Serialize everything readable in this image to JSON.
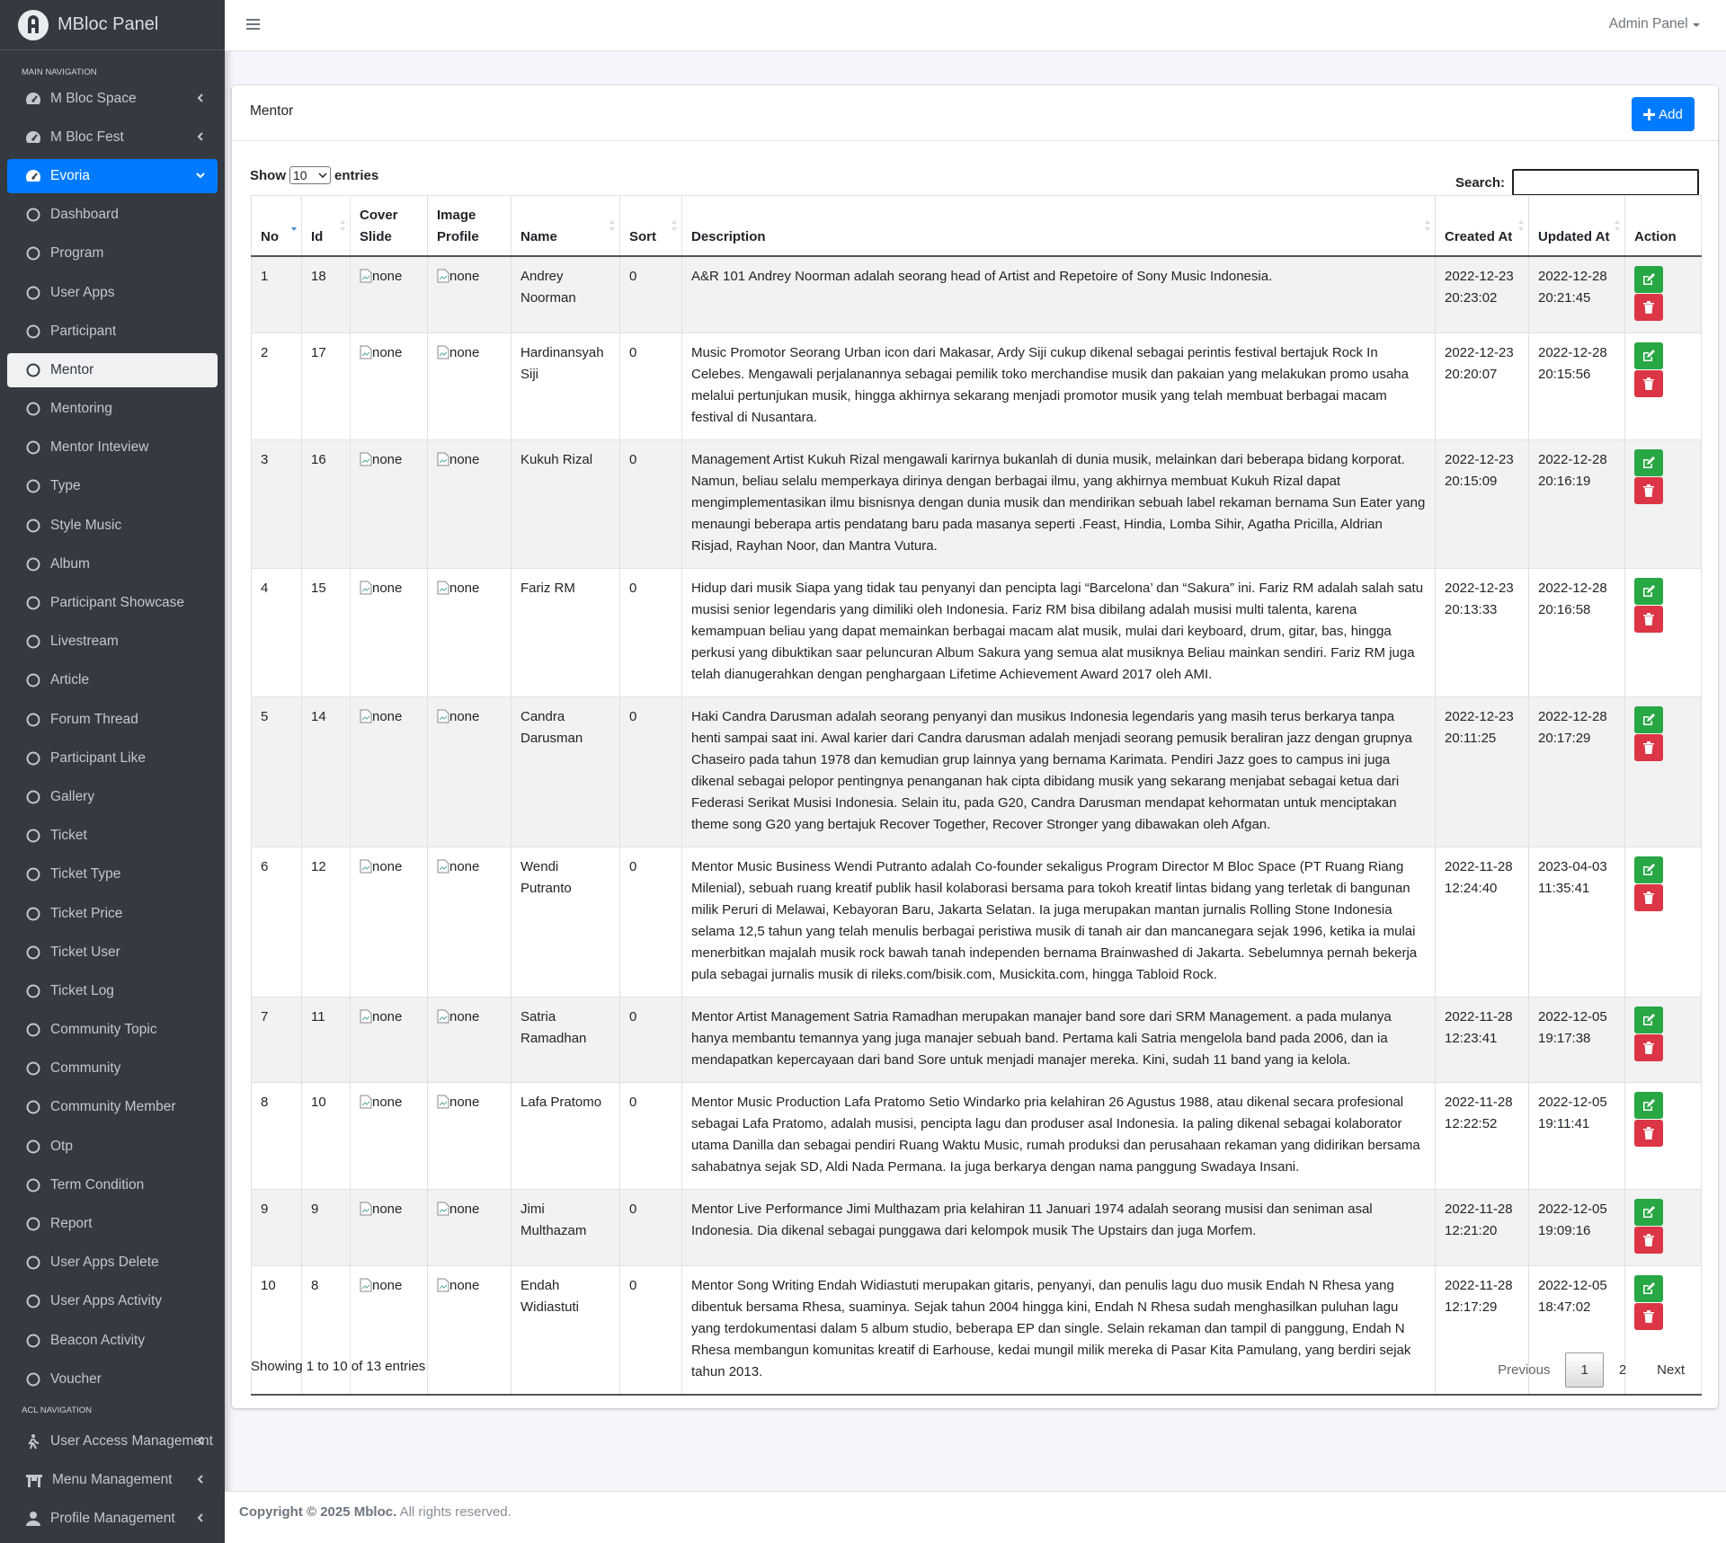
{
  "brand": "MBloc Panel",
  "header": {
    "user_menu": "Admin Panel"
  },
  "sidebar": {
    "sections": [
      {
        "heading": "MAIN NAVIGATION",
        "items": [
          {
            "label": "M Bloc Space"
          },
          {
            "label": "M Bloc Fest"
          },
          {
            "label": "Evoria",
            "expanded": true,
            "children": [
              {
                "label": "Dashboard"
              },
              {
                "label": "Program"
              },
              {
                "label": "User Apps"
              },
              {
                "label": "Participant"
              },
              {
                "label": "Mentor",
                "active": true
              },
              {
                "label": "Mentoring"
              },
              {
                "label": "Mentor Inteview"
              },
              {
                "label": "Type"
              },
              {
                "label": "Style Music"
              },
              {
                "label": "Album"
              },
              {
                "label": "Participant Showcase"
              },
              {
                "label": "Livestream"
              },
              {
                "label": "Article"
              },
              {
                "label": "Forum Thread"
              },
              {
                "label": "Participant Like"
              },
              {
                "label": "Gallery"
              },
              {
                "label": "Ticket"
              },
              {
                "label": "Ticket Type"
              },
              {
                "label": "Ticket Price"
              },
              {
                "label": "Ticket User"
              },
              {
                "label": "Ticket Log"
              },
              {
                "label": "Community Topic"
              },
              {
                "label": "Community"
              },
              {
                "label": "Community Member"
              },
              {
                "label": "Otp"
              },
              {
                "label": "Term Condition"
              },
              {
                "label": "Report"
              },
              {
                "label": "User Apps Delete"
              },
              {
                "label": "User Apps Activity"
              },
              {
                "label": "Beacon Activity"
              },
              {
                "label": "Voucher"
              }
            ]
          }
        ]
      },
      {
        "heading": "ACL NAVIGATION",
        "items": [
          {
            "label": "User Access Management"
          },
          {
            "label": "Menu Management"
          },
          {
            "label": "Profile Management"
          }
        ]
      }
    ]
  },
  "card": {
    "title": "Mentor",
    "add_button": "Add"
  },
  "controls": {
    "show": "Show",
    "length": "10",
    "entries": "entries",
    "search": "Search:"
  },
  "table": {
    "columns": [
      "No",
      "Id",
      "Cover Slide",
      "Image Profile",
      "Name",
      "Sort",
      "Description",
      "Created At",
      "Updated At",
      "Action"
    ],
    "rows": [
      {
        "no": 1,
        "id": 18,
        "cover": "none",
        "image": "none",
        "name": "Andrey Noorman",
        "sort": 0,
        "description": "A&R 101 Andrey Noorman adalah seorang head of Artist and Repetoire of Sony Music Indonesia.",
        "created": "2022-12-23 20:23:02",
        "updated": "2022-12-28 20:21:45"
      },
      {
        "no": 2,
        "id": 17,
        "cover": "none",
        "image": "none",
        "name": "Hardinansyah Siji",
        "sort": 0,
        "description": "Music Promotor Seorang Urban icon dari Makasar, Ardy Siji cukup dikenal sebagai perintis festival bertajuk Rock In Celebes. Mengawali perjalanannya sebagai pemilik toko merchandise musik dan pakaian yang melakukan promo usaha melalui pertunjukan musik, hingga akhirnya sekarang menjadi promotor musik yang telah membuat berbagai macam festival di Nusantara.",
        "created": "2022-12-23 20:20:07",
        "updated": "2022-12-28 20:15:56"
      },
      {
        "no": 3,
        "id": 16,
        "cover": "none",
        "image": "none",
        "name": "Kukuh Rizal",
        "sort": 0,
        "description": "Management Artist Kukuh Rizal mengawali karirnya bukanlah di dunia musik, melainkan dari beberapa bidang korporat. Namun, beliau selalu memperkaya dirinya dengan berbagai ilmu, yang akhirnya membuat Kukuh Rizal dapat mengimplementasikan ilmu bisnisnya dengan dunia musik dan mendirikan sebuah label rekaman bernama Sun Eater yang menaungi beberapa artis pendatang baru pada masanya seperti .Feast, Hindia, Lomba Sihir, Agatha Pricilla, Aldrian Risjad, Rayhan Noor, dan Mantra Vutura.",
        "created": "2022-12-23 20:15:09",
        "updated": "2022-12-28 20:16:19"
      },
      {
        "no": 4,
        "id": 15,
        "cover": "none",
        "image": "none",
        "name": "Fariz RM",
        "sort": 0,
        "description": "Hidup dari musik Siapa yang tidak tau penyanyi dan pencipta lagi “Barcelona’ dan “Sakura” ini. Fariz RM adalah salah satu musisi senior legendaris yang dimiliki oleh Indonesia. Fariz RM bisa dibilang adalah musisi multi talenta, karena kemampuan beliau yang dapat memainkan berbagai macam alat musik, mulai dari keyboard, drum, gitar, bas, hingga perkusi yang dibuktikan saar peluncuran Album Sakura yang semua alat musiknya Beliau mainkan sendiri. Fariz RM juga telah dianugerahkan dengan penghargaan Lifetime Achievement Award 2017 oleh AMI.",
        "created": "2022-12-23 20:13:33",
        "updated": "2022-12-28 20:16:58"
      },
      {
        "no": 5,
        "id": 14,
        "cover": "none",
        "image": "none",
        "name": "Candra Darusman",
        "sort": 0,
        "description": "Haki Candra Darusman adalah seorang penyanyi dan musikus Indonesia legendaris yang masih terus berkarya tanpa henti sampai saat ini. Awal karier dari Candra darusman adalah menjadi seorang pemusik beraliran jazz dengan grupnya Chaseiro pada tahun 1978 dan kemudian grup lainnya yang bernama Karimata. Pendiri Jazz goes to campus ini juga dikenal sebagai pelopor pentingnya penanganan hak cipta dibidang musik yang sekarang menjabat sebagai ketua dari Federasi Serikat Musisi Indonesia. Selain itu, pada G20, Candra Darusman mendapat kehormatan untuk menciptakan theme song G20 yang bertajuk Recover Together, Recover Stronger yang dibawakan oleh Afgan.",
        "created": "2022-12-23 20:11:25",
        "updated": "2022-12-28 20:17:29"
      },
      {
        "no": 6,
        "id": 12,
        "cover": "none",
        "image": "none",
        "name": "Wendi Putranto",
        "sort": 0,
        "description": "Mentor Music Business Wendi Putranto adalah Co-founder sekaligus Program Director M Bloc Space (PT Ruang Riang Milenial), sebuah ruang kreatif publik hasil kolaborasi bersama para tokoh kreatif lintas bidang yang terletak di bangunan milik Peruri di Melawai, Kebayoran Baru, Jakarta Selatan. Ia juga merupakan mantan jurnalis Rolling Stone Indonesia selama 12,5 tahun yang telah menulis berbagai peristiwa musik di tanah air dan mancanegara sejak 1996, ketika ia mulai menerbitkan majalah musik rock bawah tanah independen bernama Brainwashed di Jakarta. Sebelumnya pernah bekerja pula sebagai jurnalis musik di rileks.com/bisik.com, Musickita.com, hingga Tabloid Rock.",
        "created": "2022-11-28 12:24:40",
        "updated": "2023-04-03 11:35:41"
      },
      {
        "no": 7,
        "id": 11,
        "cover": "none",
        "image": "none",
        "name": "Satria Ramadhan",
        "sort": 0,
        "description": "Mentor Artist Management Satria Ramadhan merupakan manajer band sore dari SRM Management. a pada mulanya hanya membantu temannya yang juga manajer sebuah band. Pertama kali Satria mengelola band pada 2006, dan ia mendapatkan kepercayaan dari band Sore untuk menjadi manajer mereka. Kini, sudah 11 band yang ia kelola.",
        "created": "2022-11-28 12:23:41",
        "updated": "2022-12-05 19:17:38"
      },
      {
        "no": 8,
        "id": 10,
        "cover": "none",
        "image": "none",
        "name": "Lafa Pratomo",
        "sort": 0,
        "description": "Mentor Music Production Lafa Pratomo Setio Windarko pria kelahiran 26 Agustus 1988, atau dikenal secara profesional sebagai Lafa Pratomo, adalah musisi, pencipta lagu dan produser asal Indonesia. Ia paling dikenal sebagai kolaborator utama Danilla dan sebagai pendiri Ruang Waktu Music, rumah produksi dan perusahaan rekaman yang didirikan bersama sahabatnya sejak SD, Aldi Nada Permana. Ia juga berkarya dengan nama panggung Swadaya Insani.",
        "created": "2022-11-28 12:22:52",
        "updated": "2022-12-05 19:11:41"
      },
      {
        "no": 9,
        "id": 9,
        "cover": "none",
        "image": "none",
        "name": "Jimi Multhazam",
        "sort": 0,
        "description": "Mentor Live Performance Jimi Multhazam pria kelahiran 11 Januari 1974 adalah seorang musisi dan seniman asal Indonesia. Dia dikenal sebagai punggawa dari kelompok musik The Upstairs dan juga Morfem.",
        "created": "2022-11-28 12:21:20",
        "updated": "2022-12-05 19:09:16"
      },
      {
        "no": 10,
        "id": 8,
        "cover": "none",
        "image": "none",
        "name": "Endah Widiastuti",
        "sort": 0,
        "description": "Mentor Song Writing Endah Widiastuti merupakan gitaris, penyanyi, dan penulis lagu duo musik Endah N Rhesa yang dibentuk bersama Rhesa, suaminya. Sejak tahun 2004 hingga kini, Endah N Rhesa sudah menghasilkan puluhan lagu yang terdokumentasi dalam 5 album studio, beberapa EP dan single. Selain rekaman dan tampil di panggung, Endah N Rhesa membangun komunitas kreatif di Earhouse, kedai mungil milik mereka di Pasar Kita Pamulang, yang berdiri sejak tahun 2013.",
        "created": "2022-11-28 12:17:29",
        "updated": "2022-12-05 18:47:02"
      }
    ]
  },
  "info": "Showing 1 to 10 of 13 entries",
  "pagination": [
    "Previous",
    "1",
    "2",
    "Next"
  ],
  "pagination_active": 1,
  "footer": {
    "copyright": "Copyright © 2025 Mbloc.",
    "rights": "All rights reserved."
  }
}
